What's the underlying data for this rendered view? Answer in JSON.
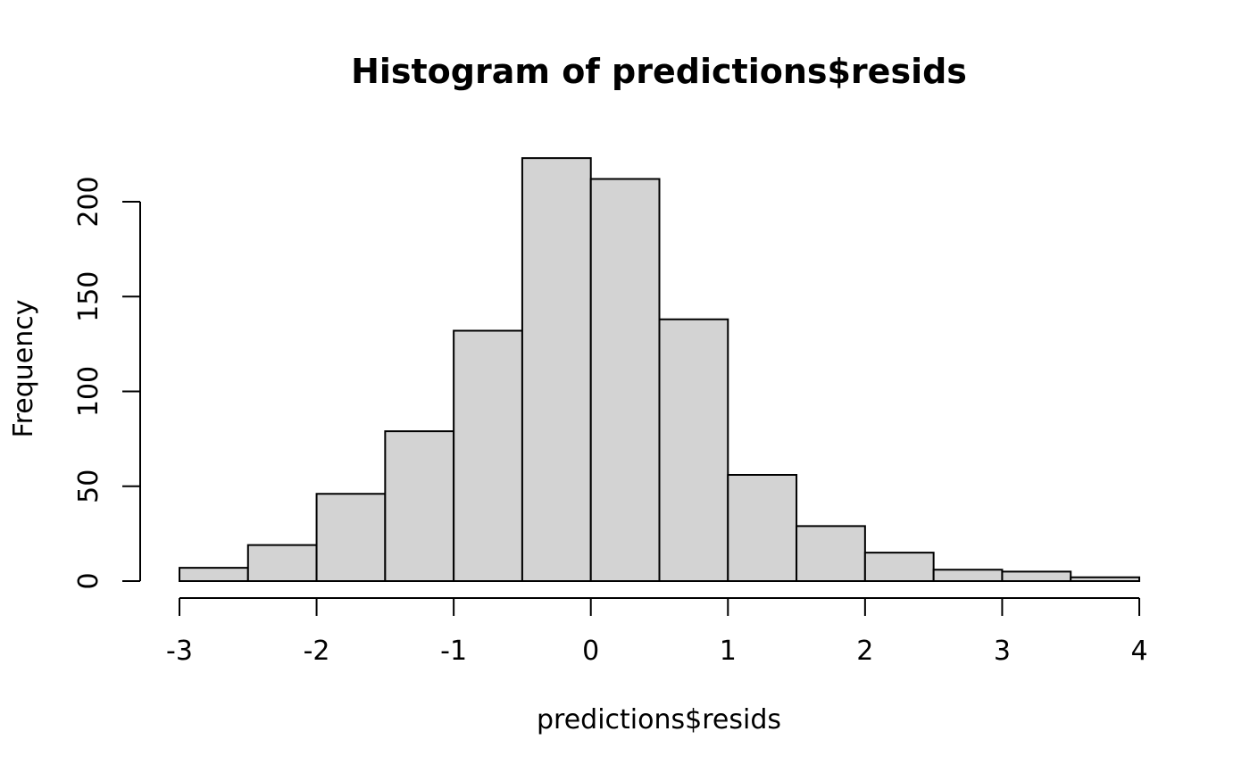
{
  "chart_data": {
    "type": "histogram",
    "title": "Histogram of predictions$resids",
    "xlabel": "predictions$resids",
    "ylabel": "Frequency",
    "xlim": [
      -3,
      4
    ],
    "ylim": [
      0,
      200
    ],
    "x_ticks": [
      "-3",
      "-2",
      "-1",
      "0",
      "1",
      "2",
      "3",
      "4"
    ],
    "y_ticks": [
      "0",
      "50",
      "100",
      "150",
      "200"
    ],
    "bins": [
      {
        "from": -3.0,
        "to": -2.5,
        "count": 7
      },
      {
        "from": -2.5,
        "to": -2.0,
        "count": 19
      },
      {
        "from": -2.0,
        "to": -1.5,
        "count": 46
      },
      {
        "from": -1.5,
        "to": -1.0,
        "count": 79
      },
      {
        "from": -1.0,
        "to": -0.5,
        "count": 132
      },
      {
        "from": -0.5,
        "to": 0.0,
        "count": 223
      },
      {
        "from": 0.0,
        "to": 0.5,
        "count": 212
      },
      {
        "from": 0.5,
        "to": 1.0,
        "count": 138
      },
      {
        "from": 1.0,
        "to": 1.5,
        "count": 56
      },
      {
        "from": 1.5,
        "to": 2.0,
        "count": 29
      },
      {
        "from": 2.0,
        "to": 2.5,
        "count": 15
      },
      {
        "from": 2.5,
        "to": 3.0,
        "count": 6
      },
      {
        "from": 3.0,
        "to": 3.5,
        "count": 5
      },
      {
        "from": 3.5,
        "to": 4.0,
        "count": 2
      }
    ],
    "bar_fill": "#d3d3d3",
    "bar_stroke": "#000000",
    "grid": false
  }
}
